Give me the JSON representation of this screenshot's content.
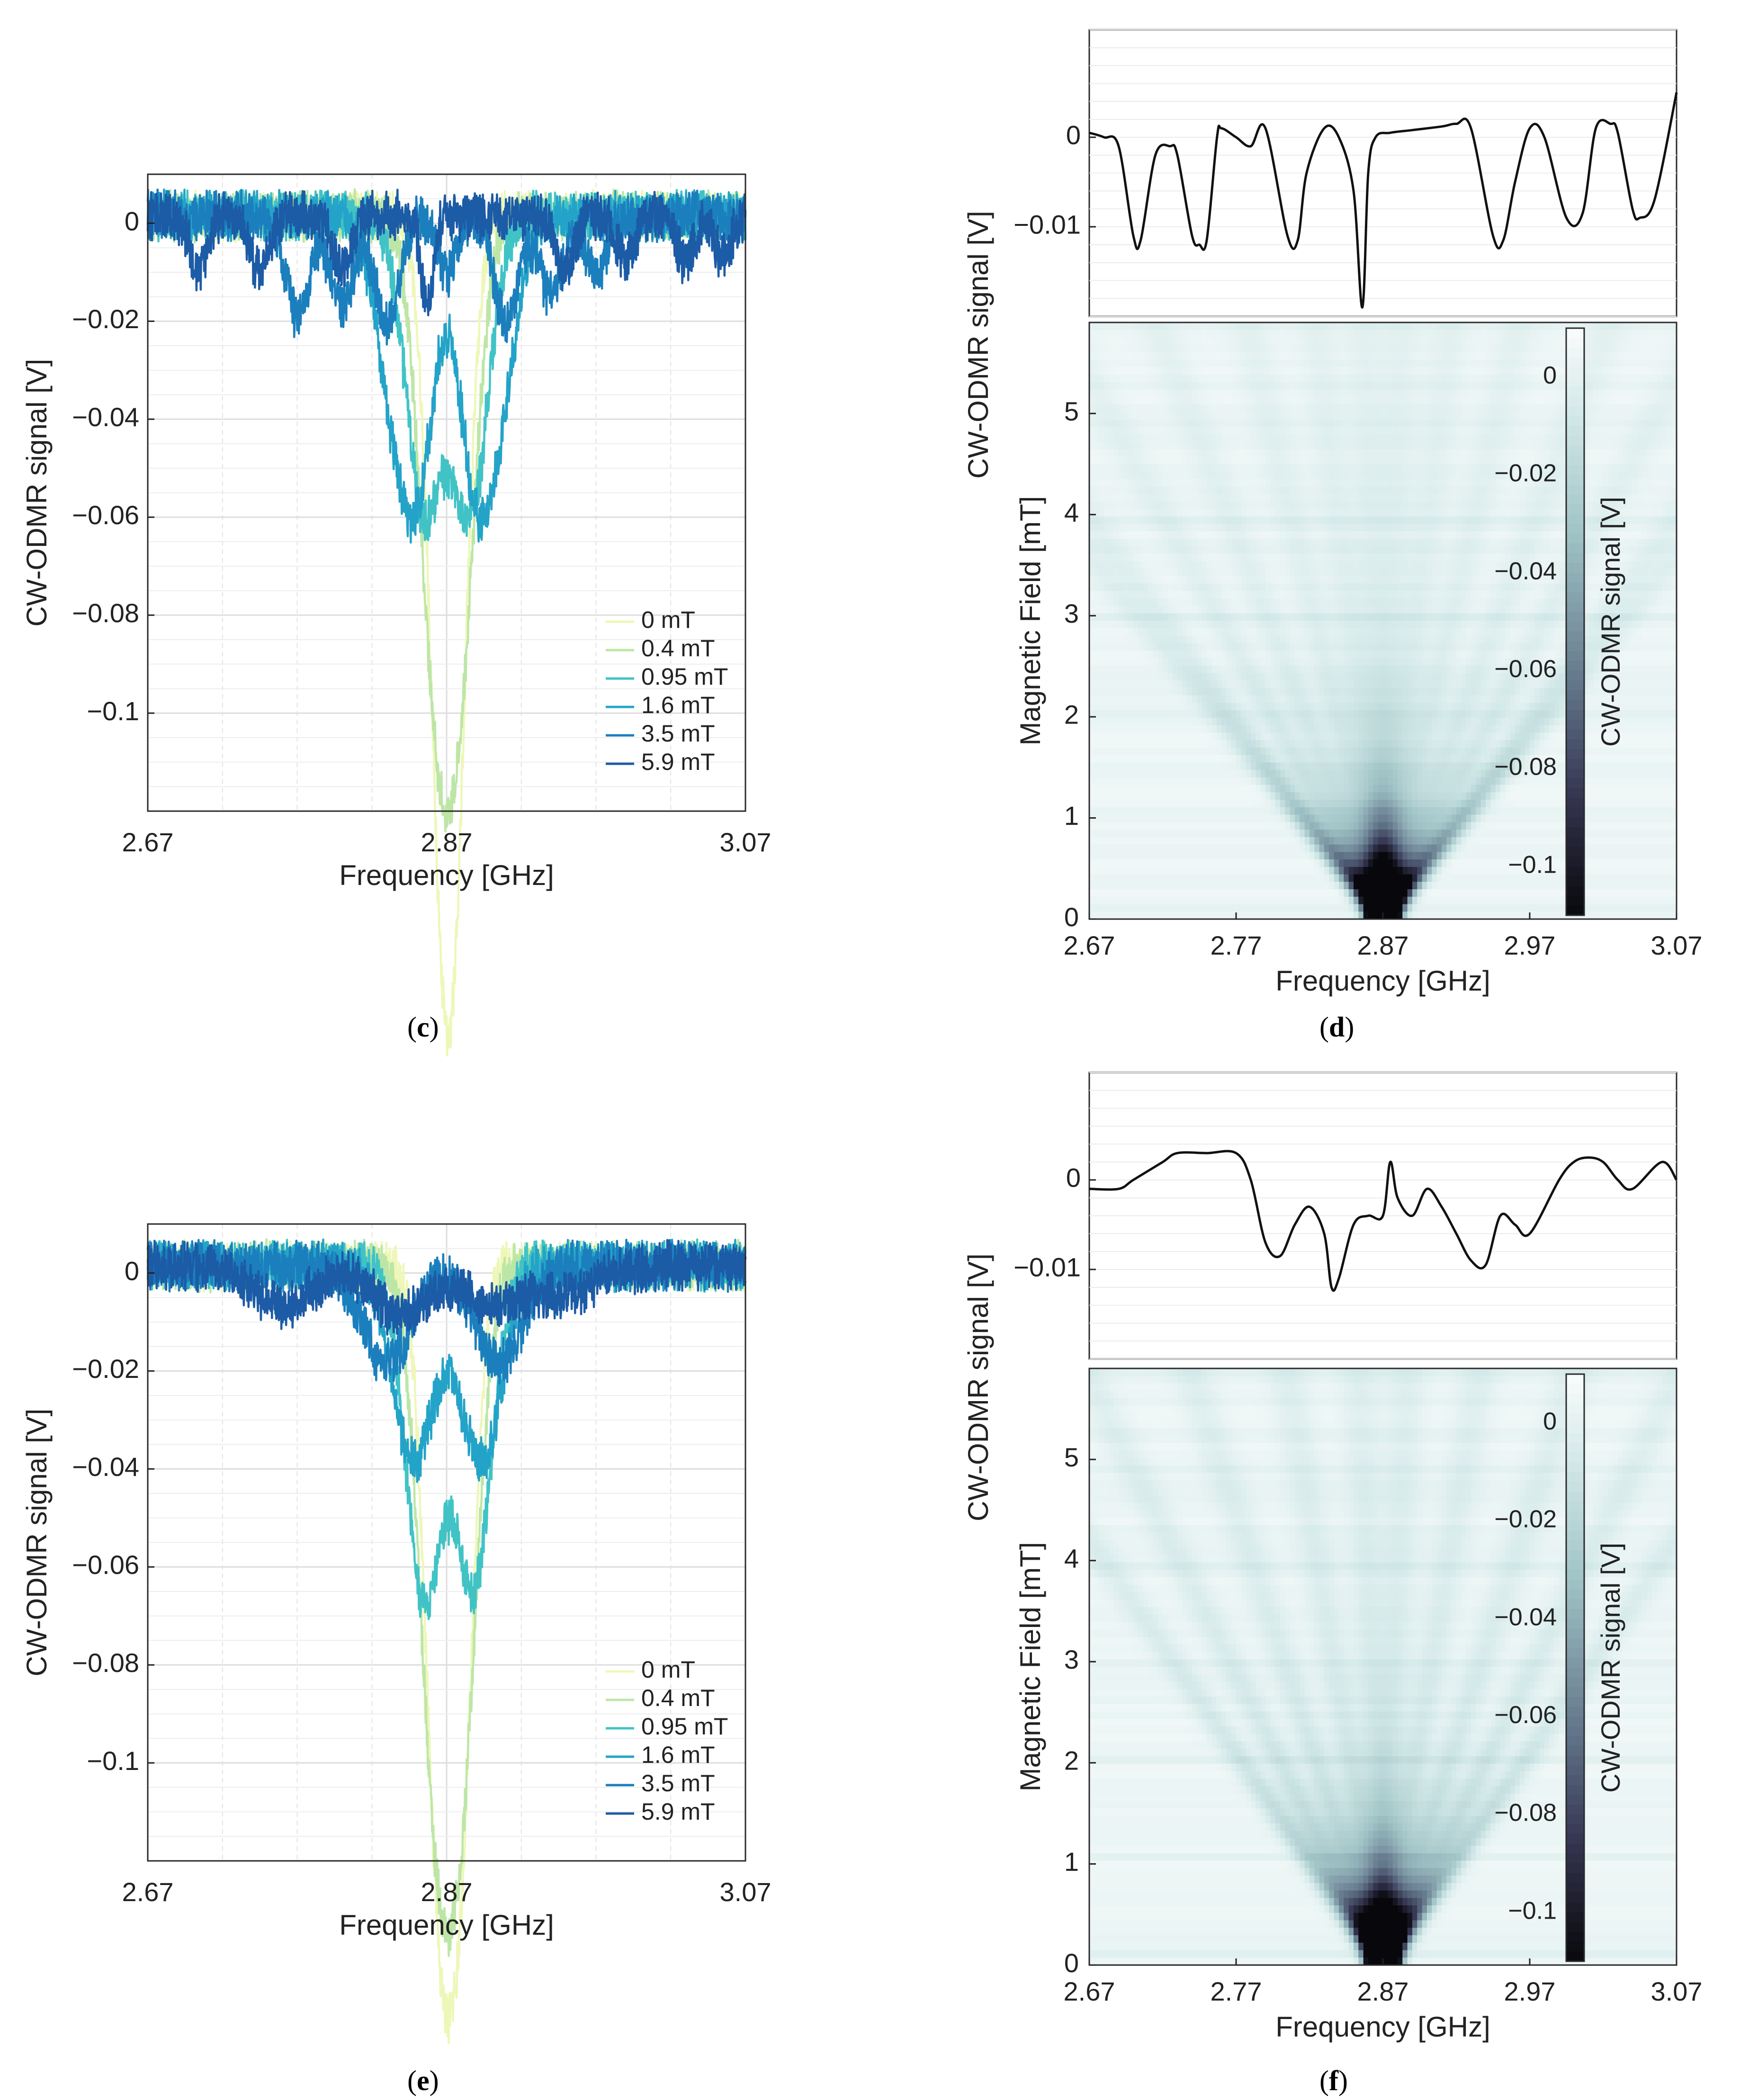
{
  "panels": [
    {
      "id": "c",
      "caption": "c",
      "type": "line",
      "xlabel": "Frequency [GHz]",
      "ylabel": "CW-ODMR signal [V]",
      "xlim": [
        2.67,
        3.07
      ],
      "ylim": [
        -0.12,
        0.01
      ],
      "xticks": [
        "2.67",
        "2.87",
        "3.07"
      ],
      "yticks": [
        "0",
        "−0.02",
        "−0.04",
        "−0.06",
        "−0.08",
        "−0.1"
      ],
      "legend": [
        "0 mT",
        "0.4 mT",
        "0.95 mT",
        "1.6 mT",
        "3.5 mT",
        "5.9 mT"
      ]
    },
    {
      "id": "d",
      "caption": "d",
      "type": "line+heatmap",
      "top_ylabel": "CW-ODMR signal [V]",
      "top_yticks": [
        "0",
        "−0.01"
      ],
      "top_ylim": [
        -0.02,
        0.012
      ],
      "xlabel": "Frequency [GHz]",
      "ylabel": "Magnetic Field [mT]",
      "xticks": [
        "2.67",
        "2.77",
        "2.87",
        "2.97",
        "3.07"
      ],
      "yticks": [
        "0",
        "1",
        "2",
        "3",
        "4",
        "5"
      ],
      "ylim": [
        0,
        5.9
      ],
      "colorbar_label": "CW-ODMR signal [V]",
      "colorbar_ticks": [
        "0",
        "−0.02",
        "−0.04",
        "−0.06",
        "−0.08",
        "−0.1"
      ],
      "colorbar_range": [
        -0.11,
        0.01
      ]
    },
    {
      "id": "e",
      "caption": "e",
      "type": "line",
      "xlabel": "Frequency [GHz]",
      "ylabel": "CW-ODMR signal [V]",
      "xlim": [
        2.67,
        3.07
      ],
      "ylim": [
        -0.12,
        0.01
      ],
      "xticks": [
        "2.67",
        "2.87",
        "3.07"
      ],
      "yticks": [
        "0",
        "−0.02",
        "−0.04",
        "−0.06",
        "−0.08",
        "−0.1"
      ],
      "legend": [
        "0 mT",
        "0.4 mT",
        "0.95 mT",
        "1.6 mT",
        "3.5 mT",
        "5.9 mT"
      ]
    },
    {
      "id": "f",
      "caption": "f",
      "type": "line+heatmap",
      "top_ylabel": "CW-ODMR signal [V]",
      "top_yticks": [
        "0",
        "−0.01"
      ],
      "top_ylim": [
        -0.02,
        0.012
      ],
      "xlabel": "Frequency [GHz]",
      "ylabel": "Magnetic Field [mT]",
      "xticks": [
        "2.67",
        "2.77",
        "2.87",
        "2.97",
        "3.07"
      ],
      "yticks": [
        "0",
        "1",
        "2",
        "3",
        "4",
        "5"
      ],
      "ylim": [
        0,
        5.9
      ],
      "colorbar_label": "CW-ODMR signal [V]",
      "colorbar_ticks": [
        "0",
        "−0.02",
        "−0.04",
        "−0.06",
        "−0.08",
        "−0.1"
      ],
      "colorbar_range": [
        -0.11,
        0.01
      ]
    }
  ],
  "chart_data": [
    {
      "panel": "c",
      "type": "line",
      "xlabel": "Frequency [GHz]",
      "ylabel": "CW-ODMR signal [V]",
      "xlim": [
        2.67,
        3.07
      ],
      "ylim": [
        -0.12,
        0.01
      ],
      "grid": true,
      "legend_position": "bottom-right",
      "series": [
        {
          "name": "0 mT",
          "color": "#eef7b8",
          "dips": [
            [
              2.866,
              -0.098,
              0.009
            ],
            [
              2.876,
              -0.098,
              0.009
            ]
          ]
        },
        {
          "name": "0.4 mT",
          "color": "#bde6a6",
          "dips": [
            [
              2.862,
              -0.082,
              0.011
            ],
            [
              2.879,
              -0.082,
              0.011
            ]
          ]
        },
        {
          "name": "0.95 mT",
          "color": "#41c3c6",
          "dips": [
            [
              2.855,
              -0.06,
              0.012
            ],
            [
              2.886,
              -0.06,
              0.012
            ]
          ]
        },
        {
          "name": "1.6 mT",
          "color": "#24a3c8",
          "dips": [
            [
              2.835,
              -0.035,
              0.012
            ],
            [
              2.852,
              -0.045,
              0.011
            ],
            [
              2.888,
              -0.045,
              0.011
            ],
            [
              2.905,
              -0.035,
              0.012
            ]
          ]
        },
        {
          "name": "3.5 mT",
          "color": "#1b7fbd",
          "dips": [
            [
              2.77,
              -0.02,
              0.008
            ],
            [
              2.8,
              -0.018,
              0.008
            ],
            [
              2.83,
              -0.022,
              0.008
            ],
            [
              2.87,
              -0.012,
              0.006
            ],
            [
              2.91,
              -0.022,
              0.008
            ],
            [
              2.94,
              -0.016,
              0.008
            ],
            [
              2.97,
              -0.012,
              0.007
            ]
          ]
        },
        {
          "name": "5.9 mT",
          "color": "#1c5ba6",
          "dips": [
            [
              2.704,
              -0.011,
              0.006
            ],
            [
              2.745,
              -0.012,
              0.006
            ],
            [
              2.8,
              -0.011,
              0.006
            ],
            [
              2.857,
              -0.019,
              0.004
            ],
            [
              2.95,
              -0.011,
              0.006
            ],
            [
              2.99,
              -0.009,
              0.006
            ],
            [
              3.03,
              -0.009,
              0.006
            ],
            [
              3.055,
              -0.008,
              0.006
            ]
          ]
        }
      ]
    },
    {
      "panel": "d",
      "type": "line",
      "xlabel": "Frequency [GHz]",
      "ylabel": "CW-ODMR signal [V]",
      "xlim": [
        2.67,
        3.07
      ],
      "ylim": [
        -0.02,
        0.012
      ],
      "x": [
        2.67,
        2.68,
        2.69,
        2.7,
        2.705,
        2.715,
        2.725,
        2.73,
        2.74,
        2.745,
        2.75,
        2.757,
        2.76,
        2.77,
        2.78,
        2.79,
        2.805,
        2.812,
        2.818,
        2.83,
        2.84,
        2.85,
        2.856,
        2.86,
        2.865,
        2.875,
        2.89,
        2.91,
        2.92,
        2.93,
        2.945,
        2.952,
        2.96,
        2.97,
        2.98,
        2.995,
        3.006,
        3.015,
        3.025,
        3.03,
        3.04,
        3.045,
        3.055,
        3.07
      ],
      "values": [
        0.0005,
        0.0,
        -0.001,
        -0.011,
        -0.0115,
        -0.002,
        -0.001,
        -0.002,
        -0.011,
        -0.012,
        -0.0115,
        0.0,
        0.001,
        0.0,
        -0.001,
        0.001,
        -0.011,
        -0.0115,
        -0.004,
        0.001,
        0.0,
        -0.006,
        -0.019,
        -0.004,
        0.0,
        0.0005,
        0.0008,
        0.0012,
        0.0015,
        0.001,
        -0.011,
        -0.0115,
        -0.005,
        0.001,
        0.0,
        -0.009,
        -0.0085,
        0.001,
        0.0015,
        0.0005,
        -0.008,
        -0.009,
        -0.007,
        0.005
      ]
    },
    {
      "panel": "d",
      "type": "heatmap",
      "xlabel": "Frequency [GHz]",
      "ylabel": "Magnetic Field [mT]",
      "xlim": [
        2.67,
        3.07
      ],
      "ylim": [
        0,
        5.9
      ],
      "colorbar_range": [
        -0.11,
        0.01
      ],
      "center_ghz": 2.87,
      "max_split_ghz": 0.33,
      "line_slopes": [
        0.04,
        0.14,
        0.28,
        0.47,
        0.67,
        0.9,
        1.0
      ],
      "min_value": -0.11
    },
    {
      "panel": "e",
      "type": "line",
      "xlabel": "Frequency [GHz]",
      "ylabel": "CW-ODMR signal [V]",
      "xlim": [
        2.67,
        3.07
      ],
      "ylim": [
        -0.12,
        0.01
      ],
      "grid": true,
      "legend_position": "bottom-right",
      "series": [
        {
          "name": "0 mT",
          "color": "#eef7b8",
          "dips": [
            [
              2.864,
              -0.109,
              0.009
            ],
            [
              2.879,
              -0.108,
              0.009
            ]
          ]
        },
        {
          "name": "0.4 mT",
          "color": "#bde6a6",
          "dips": [
            [
              2.862,
              -0.095,
              0.011
            ],
            [
              2.88,
              -0.095,
              0.011
            ]
          ]
        },
        {
          "name": "0.95 mT",
          "color": "#41c3c6",
          "dips": [
            [
              2.855,
              -0.068,
              0.012
            ],
            [
              2.888,
              -0.065,
              0.012
            ]
          ]
        },
        {
          "name": "1.6 mT",
          "color": "#24a3c8",
          "dips": [
            [
              2.848,
              -0.04,
              0.014
            ],
            [
              2.893,
              -0.04,
              0.014
            ]
          ]
        },
        {
          "name": "3.5 mT",
          "color": "#1b7fbd",
          "dips": [
            [
              2.83,
              -0.02,
              0.016
            ],
            [
              2.905,
              -0.02,
              0.016
            ]
          ]
        },
        {
          "name": "5.9 mT",
          "color": "#1c5ba6",
          "dips": [
            [
              2.76,
              -0.008,
              0.02
            ],
            [
              2.84,
              -0.01,
              0.018
            ],
            [
              2.9,
              -0.008,
              0.018
            ],
            [
              2.95,
              -0.006,
              0.02
            ]
          ]
        }
      ]
    },
    {
      "panel": "f",
      "type": "line",
      "xlabel": "Frequency [GHz]",
      "ylabel": "CW-ODMR signal [V]",
      "xlim": [
        2.67,
        3.07
      ],
      "ylim": [
        -0.02,
        0.012
      ],
      "x": [
        2.67,
        2.69,
        2.7,
        2.72,
        2.73,
        2.75,
        2.77,
        2.78,
        2.79,
        2.8,
        2.81,
        2.82,
        2.83,
        2.835,
        2.84,
        2.85,
        2.86,
        2.87,
        2.875,
        2.88,
        2.89,
        2.9,
        2.91,
        2.92,
        2.93,
        2.94,
        2.95,
        2.96,
        2.97,
        2.99,
        3.0,
        3.01,
        3.02,
        3.03,
        3.04,
        3.06,
        3.07
      ],
      "values": [
        -0.001,
        -0.001,
        0.0,
        0.002,
        0.003,
        0.003,
        0.003,
        0.0,
        -0.007,
        -0.0085,
        -0.005,
        -0.003,
        -0.006,
        -0.012,
        -0.011,
        -0.005,
        -0.004,
        -0.004,
        0.002,
        -0.002,
        -0.004,
        -0.001,
        -0.003,
        -0.006,
        -0.009,
        -0.0095,
        -0.004,
        -0.005,
        -0.006,
        0.0,
        0.002,
        0.0025,
        0.002,
        0.0,
        -0.001,
        0.002,
        0.0
      ]
    },
    {
      "panel": "f",
      "type": "heatmap",
      "xlabel": "Frequency [GHz]",
      "ylabel": "Magnetic Field [mT]",
      "xlim": [
        2.67,
        3.07
      ],
      "ylim": [
        0,
        5.9
      ],
      "colorbar_range": [
        -0.11,
        0.01
      ],
      "center_ghz": 2.87,
      "max_split_ghz": 0.33,
      "line_slopes": [
        0.05,
        0.2,
        0.4,
        0.62,
        0.85
      ],
      "min_value": -0.11
    }
  ]
}
